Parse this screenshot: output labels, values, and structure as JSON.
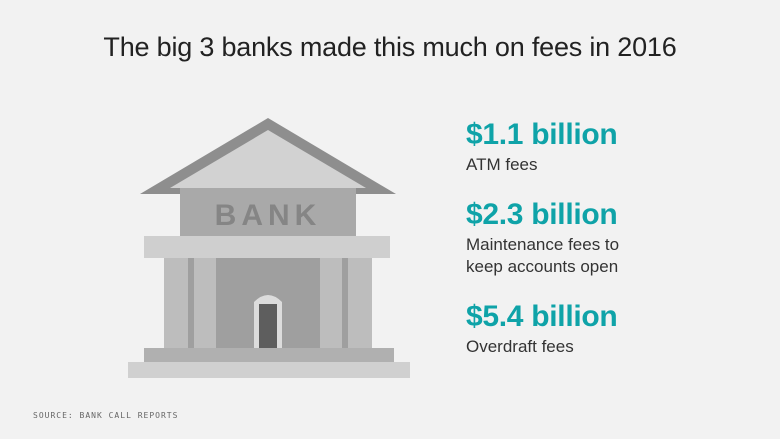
{
  "title": "The big 3 banks made this much on fees in 2016",
  "illustration": {
    "icon": "bank-building-icon",
    "sign_text": "BANK",
    "colors": {
      "roof_dark": "#8e8e8e",
      "roof_light": "#d2d2d2",
      "sign_band": "#a9a9a9",
      "sign_text": "#858585",
      "entablature": "#cfcfcf",
      "column": "#bdbdbd",
      "wall": "#9f9f9f",
      "door": "#5e5e5e",
      "door_frame": "#dcdcdc",
      "base": "#b0b0b0"
    }
  },
  "stats": [
    {
      "amount": "$1.1 billion",
      "description": "ATM fees"
    },
    {
      "amount": "$2.3 billion",
      "description": "Maintenance fees to\nkeep accounts open"
    },
    {
      "amount": "$5.4 billion",
      "description": "Overdraft fees"
    }
  ],
  "accent_color": "#0fa3a8",
  "source": "SOURCE: BANK CALL REPORTS"
}
